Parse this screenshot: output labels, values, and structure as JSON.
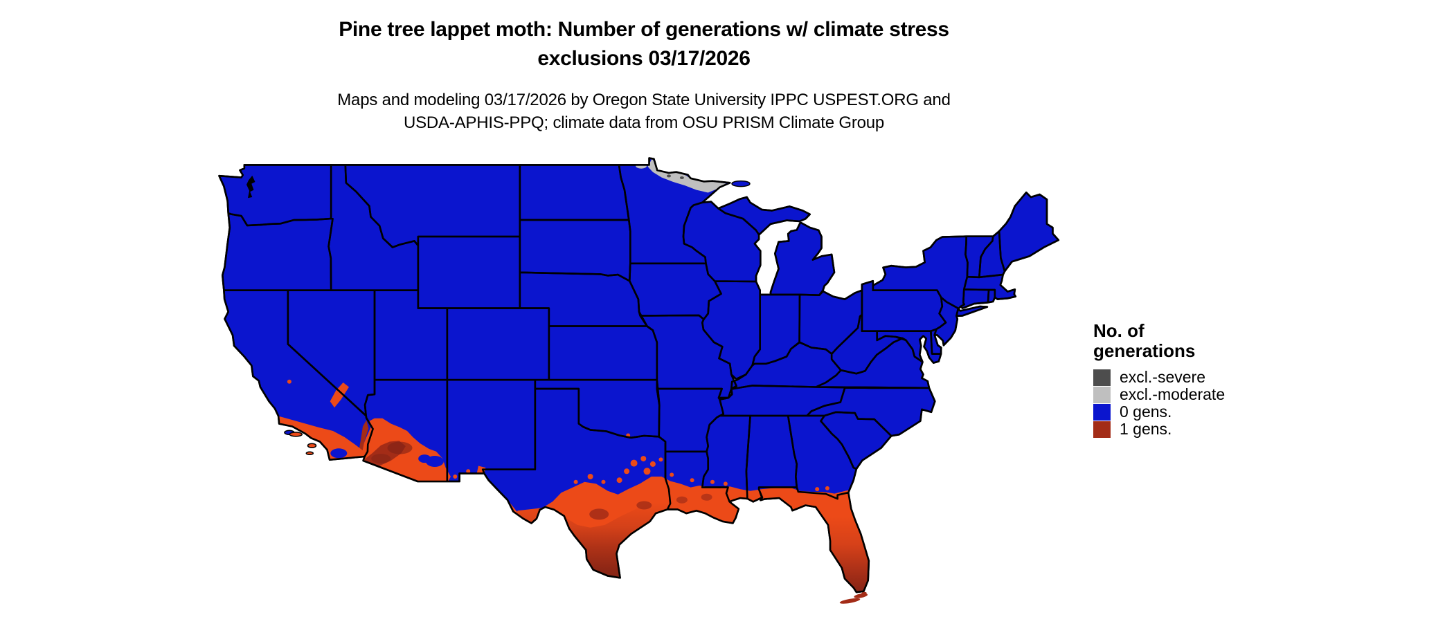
{
  "figure": {
    "title_line1": "Pine tree lappet moth: Number of generations w/ climate stress",
    "title_line2": "exclusions 03/17/2026",
    "subtitle_line1": "Maps and modeling 03/17/2026 by Oregon State University IPPC USPEST.ORG and",
    "subtitle_line2": "USDA-APHIS-PPQ; climate data from OSU PRISM Climate Group"
  },
  "legend": {
    "title_line1": "No. of",
    "title_line2": "generations",
    "items": [
      {
        "label": "excl.-severe",
        "color": "#4D4D4D"
      },
      {
        "label": "excl.-moderate",
        "color": "#BFBFBF"
      },
      {
        "label": "0 gens.",
        "color": "#0B15CE"
      },
      {
        "label": "1 gens.",
        "color": "#A32C17"
      }
    ]
  },
  "map": {
    "region": "Conterminous United States",
    "colors": {
      "background": "#FFFFFF",
      "state_border": "#000000",
      "zero_generations": "#0B15CE",
      "one_generation_low": "#EC4A18",
      "one_generation_mid": "#C43A1B",
      "one_generation_high": "#A32C17",
      "one_generation_deep": "#7E2215",
      "exclusion_moderate": "#BFBFBF",
      "exclusion_severe": "#4D4D4D"
    }
  }
}
